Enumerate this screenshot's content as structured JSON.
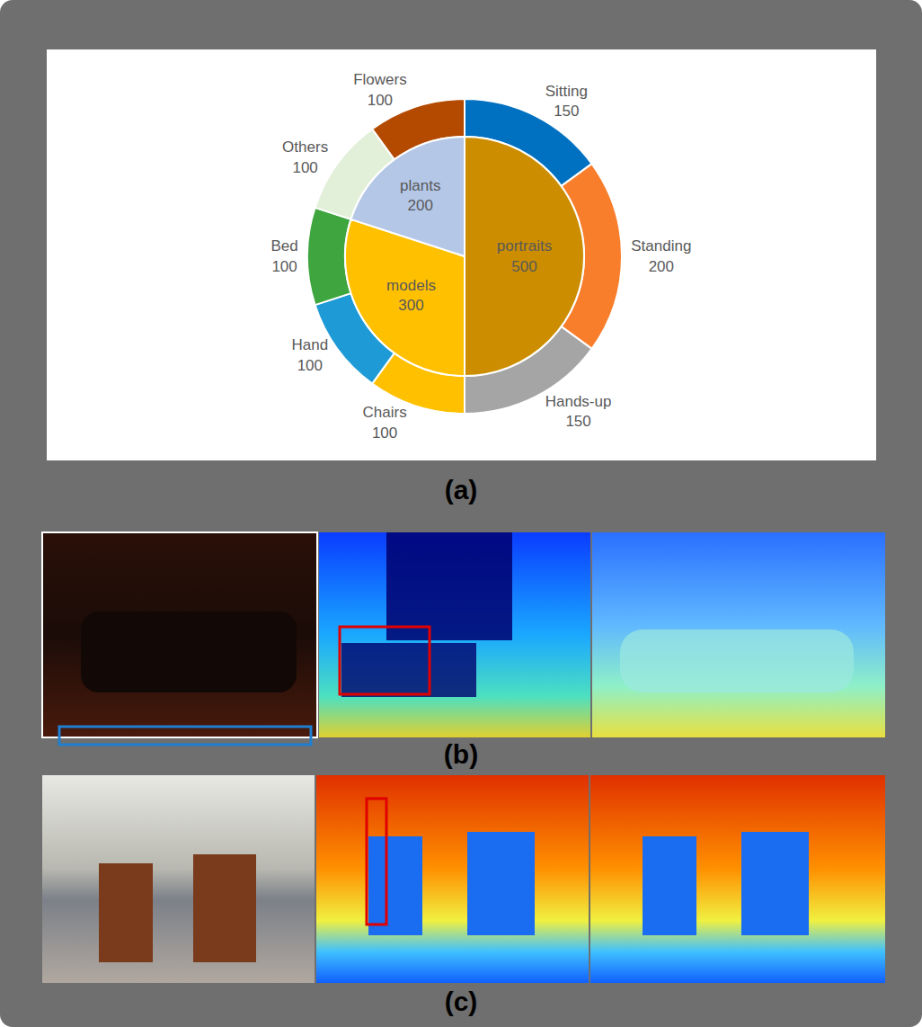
{
  "chart_data": {
    "type": "sunburst",
    "inner": {
      "categories": [
        "portraits",
        "models",
        "plants"
      ],
      "values": [
        500,
        300,
        200
      ],
      "colors": [
        "#CC8E00",
        "#FFC000",
        "#B4C7E7"
      ]
    },
    "outer": {
      "categories": [
        "Sitting",
        "Standing",
        "Hands-up",
        "Chairs",
        "Hand",
        "Bed",
        "Others",
        "Flowers"
      ],
      "values": [
        150,
        200,
        150,
        100,
        100,
        100,
        100,
        100
      ],
      "colors": [
        "#0070C0",
        "#F97E2C",
        "#A5A5A5",
        "#FFC000",
        "#1E9AD6",
        "#3FA53F",
        "#E2F0D9",
        "#B34A00"
      ]
    },
    "data_labels": true
  },
  "panel_labels": [
    "(a)",
    "(b)",
    "(c)"
  ]
}
